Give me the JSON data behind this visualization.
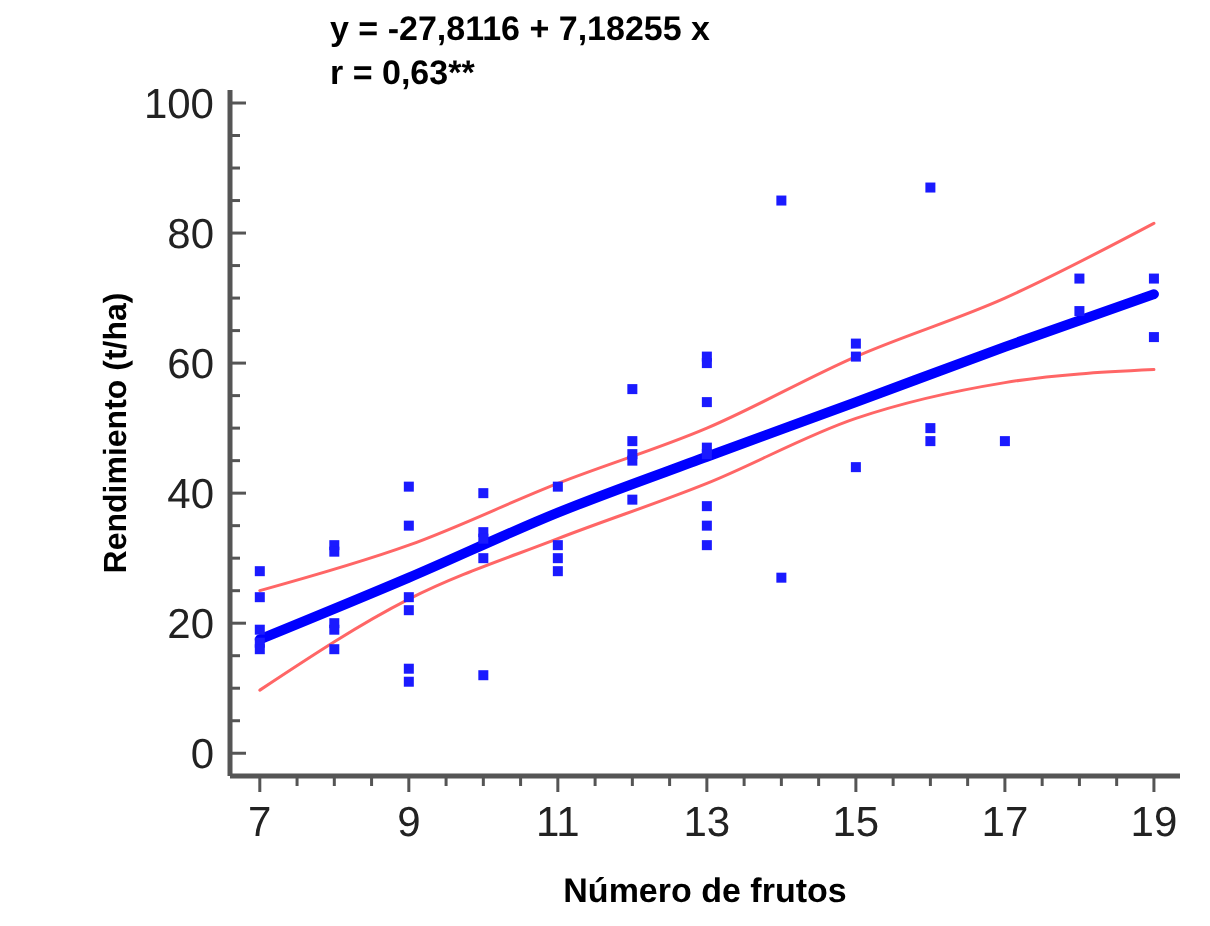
{
  "chart_data": {
    "type": "scatter",
    "xlabel": "Número de frutos",
    "ylabel": "Rendimiento (t/ha)",
    "annotations": [
      "y = -27,8116 + 7,18255 x",
      "r = 0,63**"
    ],
    "xlim": [
      6.6,
      19.35
    ],
    "ylim": [
      -3.5,
      102
    ],
    "xticks": [
      7,
      {
        "value": 7.5,
        "label": null
      },
      {
        "value": 8,
        "label": null
      },
      {
        "value": 8.5,
        "label": null
      },
      9,
      {
        "value": 9.5,
        "label": null
      },
      {
        "value": 10,
        "label": null
      },
      {
        "value": 10.5,
        "label": null
      },
      11,
      {
        "value": 11.5,
        "label": null
      },
      {
        "value": 12,
        "label": null
      },
      {
        "value": 12.5,
        "label": null
      },
      13,
      {
        "value": 13.5,
        "label": null
      },
      {
        "value": 14,
        "label": null
      },
      {
        "value": 14.5,
        "label": null
      },
      15,
      {
        "value": 15.5,
        "label": null
      },
      {
        "value": 16,
        "label": null
      },
      {
        "value": 16.5,
        "label": null
      },
      17,
      {
        "value": 17.5,
        "label": null
      },
      {
        "value": 18,
        "label": null
      },
      {
        "value": 18.5,
        "label": null
      },
      19
    ],
    "yticks": [
      0,
      {
        "value": 5,
        "label": null
      },
      {
        "value": 10,
        "label": null
      },
      {
        "value": 15,
        "label": null
      },
      20,
      {
        "value": 25,
        "label": null
      },
      {
        "value": 30,
        "label": null
      },
      {
        "value": 35,
        "label": null
      },
      40,
      {
        "value": 45,
        "label": null
      },
      {
        "value": 50,
        "label": null
      },
      {
        "value": 55,
        "label": null
      },
      60,
      {
        "value": 65,
        "label": null
      },
      {
        "value": 70,
        "label": null
      },
      {
        "value": 75,
        "label": null
      },
      80,
      {
        "value": 85,
        "label": null
      },
      {
        "value": 90,
        "label": null
      },
      {
        "value": 95,
        "label": null
      },
      100
    ],
    "grid": false,
    "marker": "square",
    "series": [
      {
        "color": "#1a1aff",
        "x": [
          7,
          7,
          7,
          7,
          7,
          8,
          8,
          8,
          8,
          8,
          9,
          9,
          9,
          9,
          9,
          9,
          10,
          10,
          10,
          10,
          10,
          11,
          11,
          11,
          11,
          12,
          12,
          12,
          12,
          12,
          13,
          13,
          13,
          13,
          13,
          13,
          13,
          13,
          14,
          14,
          15,
          15,
          15,
          16,
          16,
          16,
          17,
          18,
          18,
          19,
          19
        ],
        "values": [
          28,
          24,
          19,
          17,
          16,
          32,
          31,
          20,
          19,
          16,
          41,
          35,
          24,
          22,
          13,
          11,
          40,
          34,
          33,
          30,
          12,
          41,
          32,
          30,
          28,
          56,
          48,
          46,
          45,
          39,
          61,
          60,
          54,
          47,
          46,
          38,
          35,
          32,
          85,
          27,
          63,
          61,
          44,
          87,
          50,
          48,
          48,
          73,
          68,
          73,
          64
        ]
      },
      {
        "type": "line",
        "color": "#0000ff",
        "marker": "none",
        "x": [
          7,
          9,
          11,
          13,
          15,
          17,
          19
        ],
        "values": [
          17.5,
          27,
          37,
          45.6,
          54,
          62.5,
          70.6
        ]
      },
      {
        "type": "line",
        "color": "#ff6666",
        "marker": "none",
        "x": [
          7,
          9,
          11,
          13,
          15,
          17,
          19
        ],
        "values": [
          9.7,
          23.7,
          33,
          41.5,
          51.5,
          57,
          59
        ]
      },
      {
        "type": "line",
        "color": "#ff6666",
        "marker": "none",
        "x": [
          7,
          9,
          11,
          13,
          15,
          17,
          19
        ],
        "values": [
          25,
          32,
          41.5,
          50,
          61,
          70,
          81.5
        ]
      }
    ]
  }
}
